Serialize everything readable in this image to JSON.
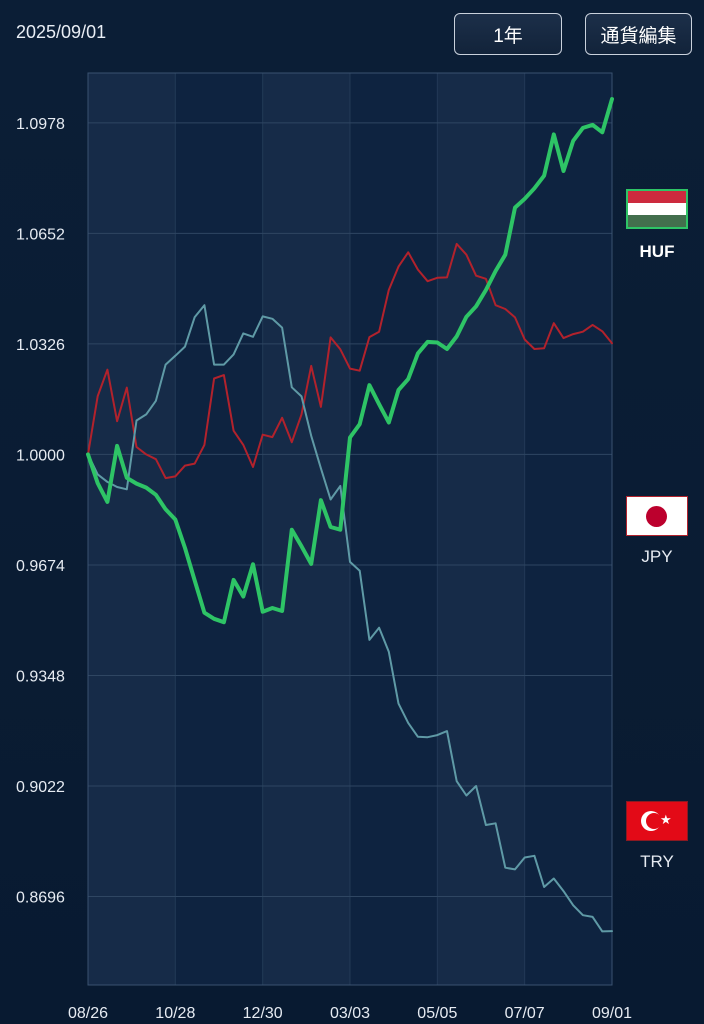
{
  "header": {
    "date": "2025/09/01",
    "range_label": "1年",
    "edit_label": "通貨編集"
  },
  "currencies": [
    {
      "code": "HUF",
      "flag": "hungary-flag",
      "selected": true
    },
    {
      "code": "JPY",
      "flag": "japan-flag",
      "selected": false
    },
    {
      "code": "TRY",
      "flag": "turkey-flag",
      "selected": false
    }
  ],
  "colors": {
    "HUF": "#2ec466",
    "JPY": "#b2222c",
    "TRY": "#5f9aa6",
    "grid": "#2f4662",
    "text": "#e6ebf2"
  },
  "chart_data": {
    "type": "line",
    "ylim": [
      0.8435,
      1.1125
    ],
    "y_ticks": [
      "1.0978",
      "1.0652",
      "1.0326",
      "1.0000",
      "0.9674",
      "0.9348",
      "0.9022",
      "0.8696"
    ],
    "x_ticks": [
      "08/26",
      "10/28",
      "12/30",
      "03/03",
      "05/05",
      "07/07",
      "09/01"
    ],
    "grid": true,
    "legend": "right",
    "series": [
      {
        "name": "HUF",
        "values": [
          1.0,
          0.9915,
          0.986,
          1.0025,
          0.9931,
          0.9914,
          0.9902,
          0.9881,
          0.9838,
          0.9808,
          0.9724,
          0.9628,
          0.9533,
          0.9515,
          0.9505,
          0.963,
          0.9581,
          0.9676,
          0.9536,
          0.9547,
          0.9538,
          0.9778,
          0.9729,
          0.9677,
          0.9865,
          0.9786,
          0.9778,
          1.005,
          1.0089,
          1.0204,
          1.0148,
          1.0094,
          1.019,
          1.0222,
          1.0298,
          1.0332,
          1.033,
          1.0311,
          1.0348,
          1.0406,
          1.0437,
          1.0485,
          1.0541,
          1.0589,
          1.0728,
          1.0754,
          1.0785,
          1.0822,
          1.0944,
          1.0836,
          1.0925,
          1.0963,
          1.0972,
          1.095,
          1.1048
        ]
      },
      {
        "name": "JPY",
        "values": [
          1.0,
          1.0172,
          1.025,
          1.0098,
          1.0197,
          1.0022,
          1.0,
          0.9986,
          0.993,
          0.9935,
          0.9967,
          0.9973,
          1.0028,
          1.0224,
          1.0234,
          1.007,
          1.0028,
          0.9963,
          1.0058,
          1.0051,
          1.0108,
          1.0036,
          1.0118,
          1.0261,
          1.014,
          1.0345,
          1.031,
          1.0253,
          1.0247,
          1.0346,
          1.0362,
          1.0485,
          1.0554,
          1.0596,
          1.0545,
          1.0511,
          1.0521,
          1.0522,
          1.0621,
          1.0589,
          1.0527,
          1.0518,
          1.044,
          1.0429,
          1.0404,
          1.0339,
          1.0311,
          1.0313,
          1.0387,
          1.0343,
          1.0355,
          1.0362,
          1.0382,
          1.0363,
          1.0328
        ]
      },
      {
        "name": "TRY",
        "values": [
          1.0,
          0.9941,
          0.9919,
          0.9904,
          0.9897,
          1.01,
          1.0118,
          1.0158,
          1.0265,
          1.0291,
          1.0318,
          1.0405,
          1.044,
          1.0265,
          1.0265,
          1.0295,
          1.0357,
          1.0347,
          1.0407,
          1.04,
          1.0374,
          1.0198,
          1.0171,
          1.0055,
          0.9959,
          0.9867,
          0.9907,
          0.9683,
          0.9657,
          0.9453,
          0.9489,
          0.9418,
          0.9265,
          0.9208,
          0.9167,
          0.9166,
          0.9172,
          0.9184,
          0.9036,
          0.8994,
          0.9022,
          0.8907,
          0.8912,
          0.8781,
          0.8776,
          0.8811,
          0.8816,
          0.8724,
          0.8749,
          0.8712,
          0.867,
          0.8641,
          0.8636,
          0.8593,
          0.8594
        ]
      }
    ]
  }
}
